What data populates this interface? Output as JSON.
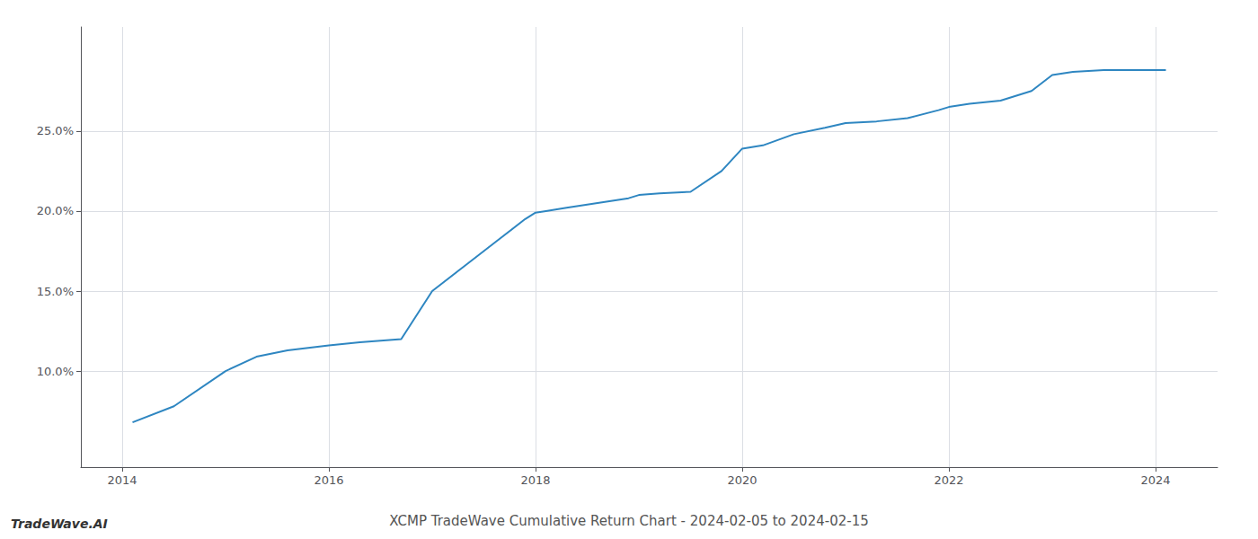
{
  "chart_data": {
    "type": "line",
    "title": "XCMP TradeWave Cumulative Return Chart - 2024-02-05 to 2024-02-15",
    "annotations": [
      "TradeWave.AI"
    ],
    "x": [
      2014.1,
      2014.5,
      2015.0,
      2015.3,
      2015.6,
      2016.0,
      2016.3,
      2016.7,
      2017.0,
      2017.3,
      2017.6,
      2017.9,
      2018.0,
      2018.1,
      2018.3,
      2018.6,
      2018.9,
      2019.0,
      2019.2,
      2019.5,
      2019.8,
      2020.0,
      2020.2,
      2020.5,
      2020.8,
      2021.0,
      2021.3,
      2021.6,
      2021.9,
      2022.0,
      2022.2,
      2022.5,
      2022.8,
      2023.0,
      2023.2,
      2023.5,
      2023.8,
      2024.0,
      2024.1
    ],
    "values": [
      6.8,
      7.8,
      10.0,
      10.9,
      11.3,
      11.6,
      11.8,
      12.0,
      15.0,
      16.5,
      18.0,
      19.5,
      19.9,
      20.0,
      20.2,
      20.5,
      20.8,
      21.0,
      21.1,
      21.2,
      22.5,
      23.9,
      24.1,
      24.8,
      25.2,
      25.5,
      25.6,
      25.8,
      26.3,
      26.5,
      26.7,
      26.9,
      27.5,
      28.5,
      28.7,
      28.8,
      28.8,
      28.8,
      28.8
    ],
    "color": "#2e86c1",
    "xlim": [
      2013.6,
      2024.6
    ],
    "xticks": [
      2014,
      2016,
      2018,
      2020,
      2022,
      2024
    ],
    "ylim": [
      4.0,
      31.5
    ],
    "yticks": [
      {
        "value": 10.0,
        "label": "10.0%"
      },
      {
        "value": 15.0,
        "label": "15.0%"
      },
      {
        "value": 20.0,
        "label": "20.0%"
      },
      {
        "value": 25.0,
        "label": "25.0%"
      }
    ],
    "grid": true
  }
}
